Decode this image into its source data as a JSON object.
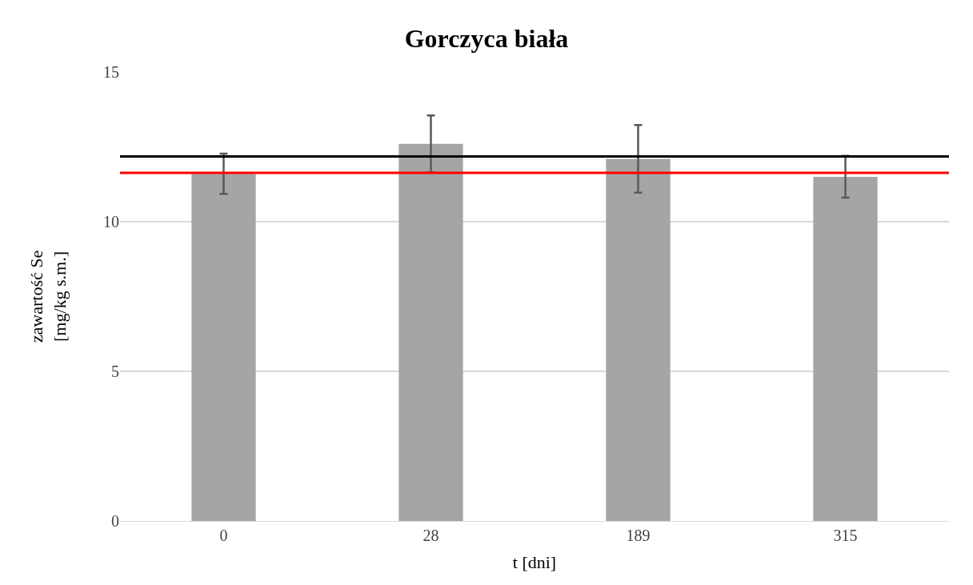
{
  "chart_data": {
    "type": "bar",
    "title": "Gorczyca biała",
    "xlabel": "t [dni]",
    "ylabel": "zawartość Se\n[mg/kg s.m.]",
    "categories": [
      "0",
      "28",
      "189",
      "315"
    ],
    "values": [
      11.6,
      12.6,
      12.1,
      11.5
    ],
    "errors": [
      0.67,
      0.95,
      1.13,
      0.7
    ],
    "color": "#a5a5a5",
    "ylim": [
      0,
      15
    ],
    "yticks": [
      0,
      5,
      10,
      15
    ],
    "grid": "y",
    "ref_lines": [
      {
        "axis": "y",
        "value": 12.18,
        "color": "#000000",
        "line_style": "solid"
      },
      {
        "axis": "y",
        "value": 11.63,
        "color": "#ff0000",
        "line_style": "solid"
      }
    ]
  }
}
